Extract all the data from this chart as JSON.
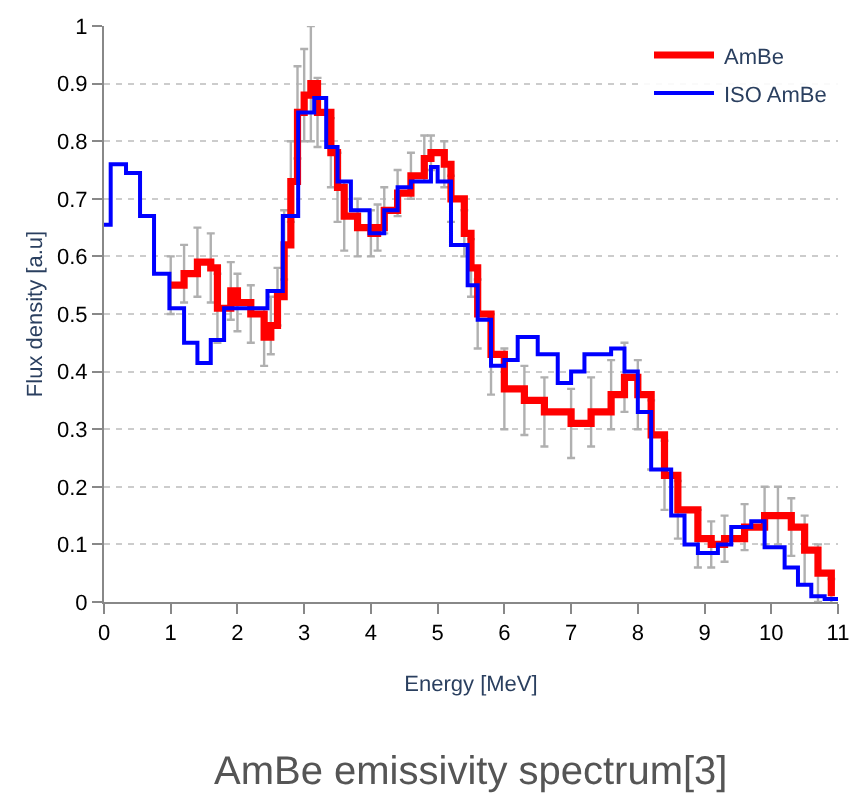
{
  "chart_data": {
    "type": "step",
    "xlabel": "Energy [MeV]",
    "ylabel": "Flux density [a.u]",
    "annotations": [
      "AmBe emissivity spectrum[3]"
    ],
    "xlim": [
      0,
      11
    ],
    "xticks": [
      0,
      1,
      2,
      3,
      4,
      5,
      6,
      7,
      8,
      9,
      10,
      11
    ],
    "ylim": [
      0,
      1
    ],
    "yticks": [
      0,
      0.1,
      0.2,
      0.3,
      0.4,
      0.5,
      0.6,
      0.7,
      0.8,
      0.9,
      1
    ],
    "grid": "y",
    "legend": "top right",
    "marker": "none",
    "line_style": "solid",
    "series": [
      {
        "name": "AmBe",
        "color": "#ff0000",
        "x": [
          1.0,
          1.2,
          1.4,
          1.6,
          1.7,
          1.9,
          2.0,
          2.2,
          2.4,
          2.5,
          2.6,
          2.7,
          2.8,
          2.9,
          3.0,
          3.1,
          3.2,
          3.4,
          3.5,
          3.6,
          3.8,
          4.0,
          4.1,
          4.2,
          4.4,
          4.6,
          4.8,
          4.9,
          5.1,
          5.2,
          5.4,
          5.5,
          5.6,
          5.8,
          6.0,
          6.3,
          6.6,
          7.0,
          7.3,
          7.6,
          7.8,
          8.0,
          8.2,
          8.4,
          8.6,
          8.9,
          9.1,
          9.3,
          9.6,
          9.9,
          10.1,
          10.3,
          10.5,
          10.7,
          10.9
        ],
        "values": [
          0.55,
          0.57,
          0.59,
          0.58,
          0.51,
          0.54,
          0.52,
          0.5,
          0.46,
          0.48,
          0.53,
          0.62,
          0.73,
          0.85,
          0.88,
          0.9,
          0.85,
          0.78,
          0.72,
          0.67,
          0.65,
          0.64,
          0.65,
          0.68,
          0.71,
          0.74,
          0.77,
          0.78,
          0.76,
          0.7,
          0.64,
          0.58,
          0.5,
          0.43,
          0.37,
          0.35,
          0.33,
          0.31,
          0.33,
          0.36,
          0.39,
          0.36,
          0.29,
          0.22,
          0.16,
          0.11,
          0.1,
          0.11,
          0.13,
          0.15,
          0.15,
          0.13,
          0.09,
          0.05,
          0.01
        ],
        "errors": [
          0.05,
          0.05,
          0.06,
          0.06,
          0.06,
          0.05,
          0.05,
          0.05,
          0.05,
          0.05,
          0.05,
          0.06,
          0.07,
          0.08,
          0.08,
          0.1,
          0.06,
          0.06,
          0.06,
          0.06,
          0.05,
          0.04,
          0.04,
          0.04,
          0.04,
          0.04,
          0.04,
          0.03,
          0.04,
          0.04,
          0.04,
          0.05,
          0.06,
          0.07,
          0.07,
          0.06,
          0.06,
          0.06,
          0.06,
          0.06,
          0.06,
          0.06,
          0.06,
          0.06,
          0.05,
          0.05,
          0.04,
          0.04,
          0.04,
          0.05,
          0.05,
          0.05,
          0.06,
          0.05,
          0.03
        ]
      },
      {
        "name": "ISO AmBe",
        "color": "#0000ff",
        "x": [
          0.0,
          0.1,
          0.33,
          0.54,
          0.75,
          0.98,
          1.2,
          1.4,
          1.6,
          1.8,
          2.0,
          2.45,
          2.68,
          2.91,
          3.15,
          3.33,
          3.5,
          3.7,
          3.98,
          4.2,
          4.4,
          4.6,
          4.9,
          5.0,
          5.2,
          5.45,
          5.6,
          5.8,
          6.0,
          6.2,
          6.5,
          6.8,
          7.0,
          7.2,
          7.6,
          7.8,
          8.0,
          8.2,
          8.5,
          8.7,
          8.9,
          9.2,
          9.4,
          9.7,
          9.9,
          10.2,
          10.4,
          10.6,
          10.8,
          11.0
        ],
        "values": [
          0.655,
          0.76,
          0.745,
          0.67,
          0.57,
          0.51,
          0.45,
          0.415,
          0.455,
          0.51,
          0.51,
          0.54,
          0.67,
          0.85,
          0.875,
          0.79,
          0.73,
          0.68,
          0.64,
          0.68,
          0.72,
          0.73,
          0.755,
          0.73,
          0.62,
          0.55,
          0.49,
          0.41,
          0.42,
          0.46,
          0.43,
          0.38,
          0.4,
          0.43,
          0.44,
          0.4,
          0.33,
          0.23,
          0.15,
          0.1,
          0.085,
          0.1,
          0.13,
          0.14,
          0.095,
          0.06,
          0.03,
          0.01,
          0.005,
          0.005
        ]
      }
    ]
  }
}
